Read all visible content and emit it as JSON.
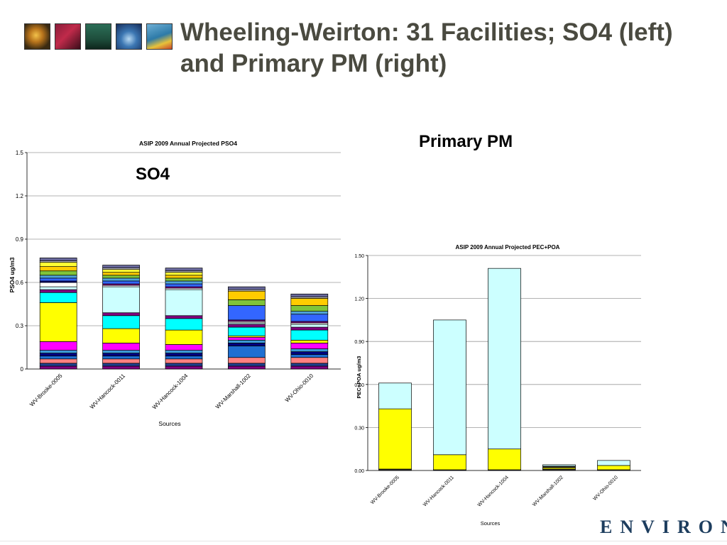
{
  "slide": {
    "title": "Wheeling-Weirton: 31 Facilities; SO4 (left) and Primary PM (right)",
    "so4_label": "SO4",
    "pm_label": "Primary PM",
    "logo_text": "ENVIRON"
  },
  "thumbnails": [
    "gold-sphere-image",
    "dna-strand-image",
    "figure-silhouette-image",
    "water-splash-image",
    "hot-air-balloon-image"
  ],
  "chart_data": [
    {
      "type": "bar",
      "stacked": true,
      "title": "ASIP 2009 Annual Projected PSO4",
      "xlabel": "Sources",
      "ylabel": "PSO4 ug/m3",
      "ylim": [
        0,
        1.5
      ],
      "yticks": [
        0,
        0.3,
        0.6,
        0.9,
        1.2,
        1.5
      ],
      "ytick_labels": [
        "0",
        "0.3",
        "0.6",
        "0.9",
        "1.2",
        "1.5"
      ],
      "categories": [
        "WV-Brooke-0005",
        "WV-Hancock-0011",
        "WV-Hancock-1004",
        "WV-Marshall-1002",
        "WV-Ohio-0010"
      ],
      "grid": true,
      "stacks": [
        {
          "segments": [
            {
              "value": 0.02,
              "color": "#800080"
            },
            {
              "value": 0.02,
              "color": "#1f3f8f"
            },
            {
              "value": 0.03,
              "color": "#ff8080"
            },
            {
              "value": 0.02,
              "color": "#1f6fd1"
            },
            {
              "value": 0.02,
              "color": "#000080"
            },
            {
              "value": 0.02,
              "color": "#3c9ad6"
            },
            {
              "value": 0.06,
              "color": "#ff00ff"
            },
            {
              "value": 0.27,
              "color": "#ffff00"
            },
            {
              "value": 0.07,
              "color": "#00ffff"
            },
            {
              "value": 0.02,
              "color": "#800080"
            },
            {
              "value": 0.02,
              "color": "#ccffff"
            },
            {
              "value": 0.03,
              "color": "#ffffff"
            },
            {
              "value": 0.01,
              "color": "#000080"
            },
            {
              "value": 0.02,
              "color": "#3366ff"
            },
            {
              "value": 0.02,
              "color": "#4fa3d9"
            },
            {
              "value": 0.03,
              "color": "#7fc43a"
            },
            {
              "value": 0.03,
              "color": "#ffcc00"
            },
            {
              "value": 0.03,
              "color": "#ffff33"
            },
            {
              "value": 0.01,
              "color": "#c0c0c0"
            },
            {
              "value": 0.02,
              "color": "#666699"
            }
          ]
        },
        {
          "segments": [
            {
              "value": 0.02,
              "color": "#800080"
            },
            {
              "value": 0.02,
              "color": "#1f3f8f"
            },
            {
              "value": 0.03,
              "color": "#ff8080"
            },
            {
              "value": 0.02,
              "color": "#1f6fd1"
            },
            {
              "value": 0.02,
              "color": "#000080"
            },
            {
              "value": 0.02,
              "color": "#3c9ad6"
            },
            {
              "value": 0.05,
              "color": "#ff00ff"
            },
            {
              "value": 0.1,
              "color": "#ffff00"
            },
            {
              "value": 0.09,
              "color": "#00ffff"
            },
            {
              "value": 0.02,
              "color": "#800080"
            },
            {
              "value": 0.18,
              "color": "#ccffff"
            },
            {
              "value": 0.01,
              "color": "#ffffff"
            },
            {
              "value": 0.01,
              "color": "#800080"
            },
            {
              "value": 0.02,
              "color": "#3366ff"
            },
            {
              "value": 0.02,
              "color": "#4fa3d9"
            },
            {
              "value": 0.02,
              "color": "#7fc43a"
            },
            {
              "value": 0.02,
              "color": "#ffcc00"
            },
            {
              "value": 0.02,
              "color": "#ffff33"
            },
            {
              "value": 0.01,
              "color": "#c0c0c0"
            },
            {
              "value": 0.02,
              "color": "#666699"
            }
          ]
        },
        {
          "segments": [
            {
              "value": 0.02,
              "color": "#800080"
            },
            {
              "value": 0.02,
              "color": "#1f3f8f"
            },
            {
              "value": 0.03,
              "color": "#ff8080"
            },
            {
              "value": 0.02,
              "color": "#1f6fd1"
            },
            {
              "value": 0.02,
              "color": "#000080"
            },
            {
              "value": 0.02,
              "color": "#3c9ad6"
            },
            {
              "value": 0.04,
              "color": "#ff00ff"
            },
            {
              "value": 0.1,
              "color": "#ffff00"
            },
            {
              "value": 0.08,
              "color": "#00ffff"
            },
            {
              "value": 0.02,
              "color": "#800080"
            },
            {
              "value": 0.18,
              "color": "#ccffff"
            },
            {
              "value": 0.01,
              "color": "#ffffff"
            },
            {
              "value": 0.01,
              "color": "#800080"
            },
            {
              "value": 0.02,
              "color": "#3366ff"
            },
            {
              "value": 0.02,
              "color": "#4fa3d9"
            },
            {
              "value": 0.02,
              "color": "#7fc43a"
            },
            {
              "value": 0.02,
              "color": "#ffcc00"
            },
            {
              "value": 0.02,
              "color": "#ffff33"
            },
            {
              "value": 0.01,
              "color": "#c0c0c0"
            },
            {
              "value": 0.02,
              "color": "#666699"
            }
          ]
        },
        {
          "segments": [
            {
              "value": 0.02,
              "color": "#800080"
            },
            {
              "value": 0.02,
              "color": "#1f3f8f"
            },
            {
              "value": 0.04,
              "color": "#ff8080"
            },
            {
              "value": 0.08,
              "color": "#1f6fd1"
            },
            {
              "value": 0.02,
              "color": "#000080"
            },
            {
              "value": 0.02,
              "color": "#3c9ad6"
            },
            {
              "value": 0.02,
              "color": "#ff00ff"
            },
            {
              "value": 0.01,
              "color": "#ffff00"
            },
            {
              "value": 0.06,
              "color": "#00ffff"
            },
            {
              "value": 0.02,
              "color": "#800080"
            },
            {
              "value": 0.01,
              "color": "#ccffff"
            },
            {
              "value": 0.01,
              "color": "#ffffff"
            },
            {
              "value": 0.01,
              "color": "#800080"
            },
            {
              "value": 0.1,
              "color": "#3366ff"
            },
            {
              "value": 0.04,
              "color": "#7fc43a"
            },
            {
              "value": 0.06,
              "color": "#ffcc00"
            },
            {
              "value": 0.01,
              "color": "#c0c0c0"
            },
            {
              "value": 0.02,
              "color": "#666699"
            }
          ]
        },
        {
          "segments": [
            {
              "value": 0.02,
              "color": "#800080"
            },
            {
              "value": 0.02,
              "color": "#1f3f8f"
            },
            {
              "value": 0.04,
              "color": "#ff8080"
            },
            {
              "value": 0.02,
              "color": "#1f6fd1"
            },
            {
              "value": 0.02,
              "color": "#000080"
            },
            {
              "value": 0.02,
              "color": "#3c9ad6"
            },
            {
              "value": 0.04,
              "color": "#ff00ff"
            },
            {
              "value": 0.02,
              "color": "#ffff00"
            },
            {
              "value": 0.07,
              "color": "#00ffff"
            },
            {
              "value": 0.02,
              "color": "#800080"
            },
            {
              "value": 0.02,
              "color": "#ccffff"
            },
            {
              "value": 0.01,
              "color": "#ffffff"
            },
            {
              "value": 0.01,
              "color": "#800080"
            },
            {
              "value": 0.05,
              "color": "#3366ff"
            },
            {
              "value": 0.02,
              "color": "#4fa3d9"
            },
            {
              "value": 0.04,
              "color": "#7fc43a"
            },
            {
              "value": 0.05,
              "color": "#ffcc00"
            },
            {
              "value": 0.01,
              "color": "#c0c0c0"
            },
            {
              "value": 0.02,
              "color": "#666699"
            }
          ]
        }
      ]
    },
    {
      "type": "bar",
      "stacked": true,
      "title": "ASIP 2009 Annual Projected PEC+POA",
      "xlabel": "Sources",
      "ylabel": "PEC+POA ug/m3",
      "ylim": [
        0,
        1.5
      ],
      "yticks": [
        0,
        0.3,
        0.6,
        0.9,
        1.2,
        1.5
      ],
      "ytick_labels": [
        "0.00",
        "0.30",
        "0.60",
        "0.90",
        "1.20",
        "1.50"
      ],
      "categories": [
        "WV-Brooke-0005",
        "WV-Hancock-0011",
        "WV-Hancock-1004",
        "WV-Marshall-1002",
        "WV-Ohio-0010"
      ],
      "grid": true,
      "stacks": [
        {
          "segments": [
            {
              "value": 0.01,
              "color": "#2b2b2b"
            },
            {
              "value": 0.42,
              "color": "#ffff00"
            },
            {
              "value": 0.18,
              "color": "#ccffff"
            }
          ]
        },
        {
          "segments": [
            {
              "value": 0.005,
              "color": "#2b2b2b"
            },
            {
              "value": 0.105,
              "color": "#ffff00"
            },
            {
              "value": 0.94,
              "color": "#ccffff"
            }
          ]
        },
        {
          "segments": [
            {
              "value": 0.005,
              "color": "#2b2b2b"
            },
            {
              "value": 0.145,
              "color": "#ffff00"
            },
            {
              "value": 1.26,
              "color": "#ccffff"
            }
          ]
        },
        {
          "segments": [
            {
              "value": 0.01,
              "color": "#2b2b2b"
            },
            {
              "value": 0.01,
              "color": "#ffff00"
            },
            {
              "value": 0.01,
              "color": "#2b2b2b"
            },
            {
              "value": 0.01,
              "color": "#ccffff"
            }
          ]
        },
        {
          "segments": [
            {
              "value": 0.005,
              "color": "#2b2b2b"
            },
            {
              "value": 0.03,
              "color": "#ffff00"
            },
            {
              "value": 0.035,
              "color": "#ccffff"
            }
          ]
        }
      ]
    }
  ]
}
